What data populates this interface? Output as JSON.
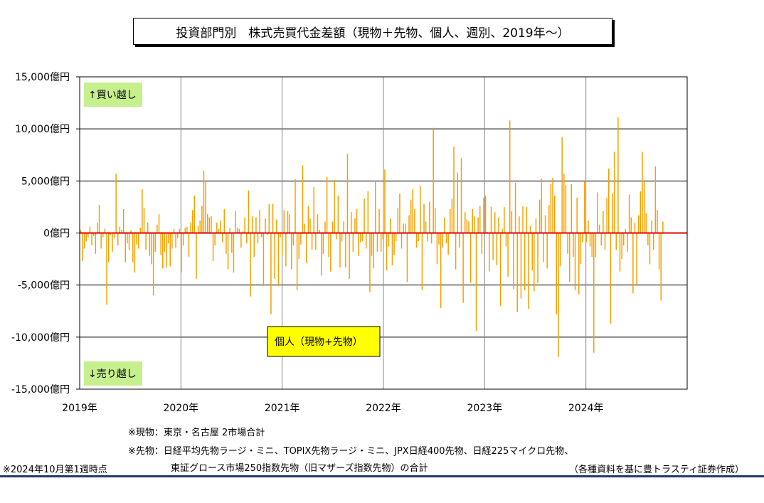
{
  "title": "投資部門別　株式売買代金差額（現物＋先物、個人、週別、2019年～）",
  "annotations": {
    "buy": "↑買い越し",
    "sell": "↓売り越し",
    "series_label": "個人（現物+先物）"
  },
  "notes": {
    "spot": "※現物：東京・名古屋 2市場合計",
    "futures_1": "※先物：日経平均先物ラージ・ミニ、TOPIX先物ラージ・ミニ、JPX日経400先物、日経225マイクロ先物、",
    "futures_2": "東証グロース市場250指数先物（旧マザーズ指数先物）の合計",
    "as_of": "※2024年10月第1週時点",
    "source": "（各種資料を基に豊トラスティ証券作成）"
  },
  "colors": {
    "bar": "#f5a000",
    "zero_line": "#e00000",
    "annotation_green": "#c6ef8e",
    "label_yellow": "#ffff00",
    "bottom_rule": "#1f3a6e"
  },
  "chart_data": {
    "type": "bar",
    "title": "投資部門別　株式売買代金差額（現物＋先物、個人、週別、2019年～）",
    "xlabel": "",
    "ylabel": "",
    "ylim": [
      -15000,
      15000
    ],
    "yticks": [
      "15,000億円",
      "10,000億円",
      "5,000億円",
      "0億円",
      "-5,000億円",
      "-10,000億円",
      "-15,000億円"
    ],
    "ytick_values": [
      15000,
      10000,
      5000,
      0,
      -5000,
      -10000,
      -15000
    ],
    "xticks": [
      "2019年",
      "2020年",
      "2021年",
      "2022年",
      "2023年",
      "2024年"
    ],
    "xtick_values": [
      2019,
      2020,
      2021,
      2022,
      2023,
      2024
    ],
    "xlim": [
      2019.0,
      2025.0
    ],
    "grid": true,
    "series": [
      {
        "values": [
          300,
          -2700,
          -1500,
          -800,
          -400,
          600,
          -1200,
          -300,
          -2000,
          1000,
          2700,
          -1500,
          -400,
          400,
          -6900,
          -2800,
          -200,
          -1800,
          -500,
          5700,
          -1200,
          600,
          300,
          2300,
          -2800,
          -1000,
          -1600,
          300,
          -2800,
          -3800,
          -1100,
          -1500,
          500,
          4200,
          2400,
          -1600,
          1000,
          -2200,
          -3000,
          -6000,
          -1800,
          800,
          1800,
          -2100,
          -3400,
          -1800,
          -3300,
          -1000,
          -3200,
          -1500,
          400,
          -1400,
          -500,
          400,
          -3800,
          -1200,
          500,
          600,
          -2300,
          1000,
          2200,
          3600,
          -4400,
          700,
          1200,
          2600,
          6000,
          4900,
          1800,
          1500,
          1600,
          -2700,
          -1200,
          1000,
          400,
          1200,
          -900,
          2300,
          -2000,
          -3500,
          500,
          -1900,
          -3800,
          2100,
          500,
          400,
          -1400,
          200,
          1500,
          -1000,
          4100,
          -6100,
          1600,
          -2300,
          1500,
          -1000,
          2200,
          -400,
          -5100,
          1400,
          -200,
          2800,
          -7800,
          2800,
          -4400,
          1300,
          -5100,
          -400,
          -2100,
          2200,
          -3200,
          2100,
          1800,
          -3500,
          -1200,
          5200,
          -5500,
          -2500,
          -1100,
          6500,
          900,
          -2900,
          2600,
          1400,
          -1600,
          4400,
          -1600,
          1800,
          300,
          -4100,
          -2000,
          1100,
          5400,
          -2300,
          -3700,
          1100,
          5100,
          -600,
          3600,
          -3300,
          -800,
          1100,
          -3300,
          7600,
          -4400,
          2000,
          -1800,
          1400,
          2300,
          -2200,
          -900,
          -800,
          3300,
          -1500,
          4000,
          -5700,
          -2200,
          -3400,
          4900,
          -1800,
          2300,
          -1800,
          -600,
          6100,
          -3600,
          -1300,
          1400,
          -3100,
          -2100,
          -800,
          2400,
          3800,
          -1500,
          900,
          900,
          -4700,
          1700,
          3200,
          4200,
          2300,
          -1400,
          -800,
          4500,
          -5500,
          2800,
          1100,
          -800,
          3000,
          -1000,
          10100,
          2400,
          -3000,
          -1100,
          -7200,
          -1400,
          1500,
          -1000,
          -2100,
          2300,
          3300,
          8300,
          -3500,
          5800,
          -1400,
          7200,
          -6700,
          2000,
          1300,
          1100,
          -4800,
          2300,
          1600,
          -9400,
          1500,
          2600,
          -2000,
          3400,
          3600,
          100,
          -3700,
          2500,
          -2600,
          2000,
          -3100,
          1500,
          -7000,
          400,
          2500,
          -1300,
          -4200,
          10800,
          2100,
          -5400,
          4800,
          -7600,
          1600,
          -6300,
          2600,
          -5500,
          2500,
          -7300,
          700,
          -3600,
          -5600,
          1400,
          -4800,
          3200,
          5200,
          -2800,
          1700,
          -3400,
          2700,
          4700,
          5300,
          3600,
          -7800,
          -11900,
          -3200,
          9200,
          5700,
          4600,
          -2000,
          -4700,
          4700,
          -2300,
          -5500,
          3400,
          -5900,
          -3000,
          -900,
          5000,
          -900,
          1200,
          -1300,
          -2300,
          -11500,
          -2300,
          3900,
          800,
          -1200,
          2100,
          -1600,
          3400,
          6200,
          -8700,
          3800,
          7800,
          -1600,
          11100,
          -3700,
          -2500,
          -1200,
          400,
          -1800,
          3700,
          1500,
          -5800,
          1000,
          -4900,
          1700,
          4000,
          7800,
          4900,
          1900,
          -1200,
          -3000,
          1200,
          -1600,
          6400,
          2200,
          -3500,
          -6500,
          1100
        ]
      }
    ]
  }
}
